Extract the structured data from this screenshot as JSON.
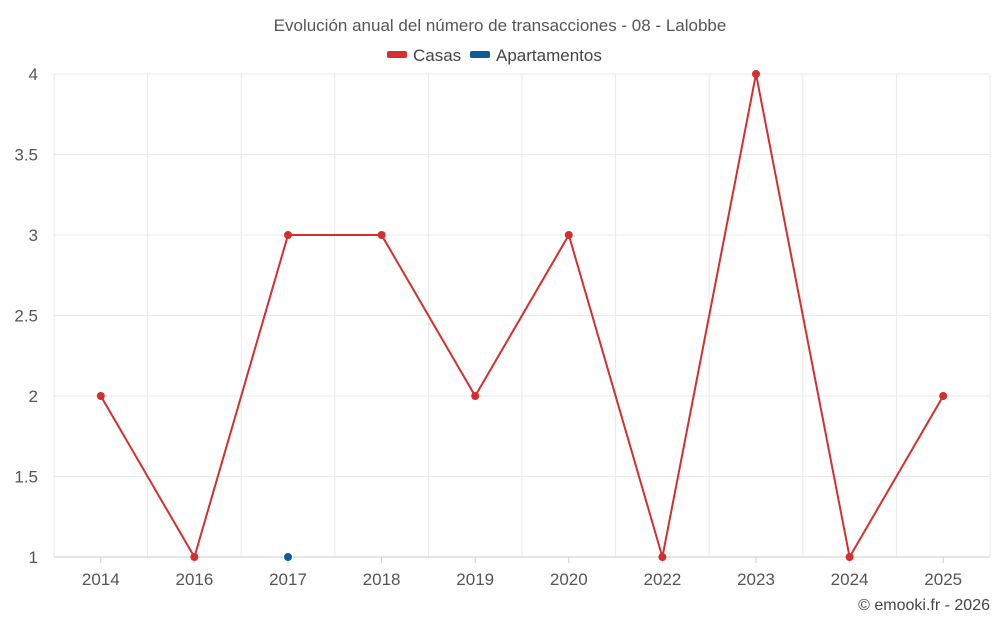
{
  "chart_data": {
    "type": "line",
    "title": "Evolución anual del número de transacciones - 08 - Lalobbe",
    "categories": [
      "2014",
      "2016",
      "2017",
      "2018",
      "2019",
      "2020",
      "2022",
      "2023",
      "2024",
      "2025"
    ],
    "series": [
      {
        "name": "Casas",
        "color": "#d32f2f",
        "values": [
          2,
          1,
          3,
          3,
          2,
          3,
          1,
          4,
          1,
          2
        ]
      },
      {
        "name": "Apartamentos",
        "color": "#0b5d96",
        "values": [
          null,
          null,
          1,
          null,
          null,
          null,
          null,
          null,
          null,
          null
        ]
      }
    ],
    "ylim": [
      1,
      4
    ],
    "yticks": [
      "1",
      "1.5",
      "2",
      "2.5",
      "3",
      "3.5",
      "4"
    ],
    "xlabel": "",
    "ylabel": "",
    "grid": true,
    "legend_position": "top-center",
    "credit": "© emooki.fr - 2026"
  }
}
